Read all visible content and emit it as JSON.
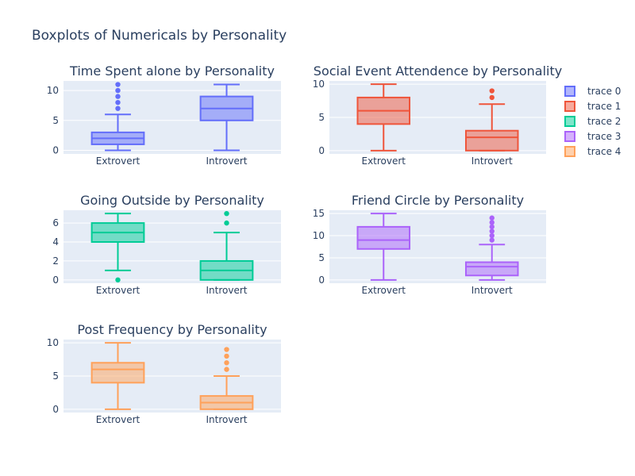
{
  "chart_data": {
    "type": "box",
    "title": "Boxplots of Numericals by Personality",
    "categories": [
      "Extrovert",
      "Introvert"
    ],
    "legend": {
      "placement": "right",
      "entries": [
        "trace 0",
        "trace 1",
        "trace 2",
        "trace 3",
        "trace 4"
      ]
    },
    "series": [
      {
        "name": "trace 0",
        "subplot_title": "Time Spent alone by Personality",
        "color": "#636efa",
        "ylim": [
          -0.6,
          11.6
        ],
        "yticks": [
          0,
          5,
          10
        ],
        "boxes": [
          {
            "category": "Extrovert",
            "min": 0,
            "q1": 1,
            "median": 2,
            "q3": 3,
            "max": 6,
            "outliers": [
              7,
              8,
              9,
              10,
              11
            ]
          },
          {
            "category": "Introvert",
            "min": 0,
            "q1": 5,
            "median": 7,
            "q3": 9,
            "max": 11,
            "outliers": []
          }
        ]
      },
      {
        "name": "trace 1",
        "subplot_title": "Social Event Attendence by Personality",
        "color": "#EF553B",
        "ylim": [
          -0.5,
          10.5
        ],
        "yticks": [
          0,
          5,
          10
        ],
        "boxes": [
          {
            "category": "Extrovert",
            "min": 0,
            "q1": 4,
            "median": 6,
            "q3": 8,
            "max": 10,
            "outliers": []
          },
          {
            "category": "Introvert",
            "min": 0,
            "q1": 0,
            "median": 2,
            "q3": 3,
            "max": 7,
            "outliers": [
              8,
              9
            ]
          }
        ]
      },
      {
        "name": "trace 2",
        "subplot_title": "Going Outside by Personality",
        "color": "#00cc96",
        "ylim": [
          -0.35,
          7.35
        ],
        "yticks": [
          0,
          2,
          4,
          6
        ],
        "boxes": [
          {
            "category": "Extrovert",
            "min": 1,
            "q1": 4,
            "median": 5,
            "q3": 6,
            "max": 7,
            "outliers": [
              0
            ]
          },
          {
            "category": "Introvert",
            "min": 0,
            "q1": 0,
            "median": 1,
            "q3": 2,
            "max": 5,
            "outliers": [
              6,
              7
            ]
          }
        ]
      },
      {
        "name": "trace 3",
        "subplot_title": "Friend Circle by Personality",
        "color": "#ab63fa",
        "ylim": [
          -0.75,
          15.75
        ],
        "yticks": [
          0,
          5,
          10,
          15
        ],
        "boxes": [
          {
            "category": "Extrovert",
            "min": 0,
            "q1": 7,
            "median": 9,
            "q3": 12,
            "max": 15,
            "outliers": []
          },
          {
            "category": "Introvert",
            "min": 0,
            "q1": 1,
            "median": 3,
            "q3": 4,
            "max": 8,
            "outliers": [
              9,
              10,
              11,
              12,
              13,
              14
            ]
          }
        ]
      },
      {
        "name": "trace 4",
        "subplot_title": "Post Frequency by Personality",
        "color": "#FFA15A",
        "ylim": [
          -0.5,
          10.5
        ],
        "yticks": [
          0,
          5,
          10
        ],
        "boxes": [
          {
            "category": "Extrovert",
            "min": 0,
            "q1": 4,
            "median": 6,
            "q3": 7,
            "max": 10,
            "outliers": []
          },
          {
            "category": "Introvert",
            "min": 0,
            "q1": 0,
            "median": 1,
            "q3": 2,
            "max": 5,
            "outliers": [
              6,
              7,
              8,
              9
            ]
          }
        ]
      }
    ]
  }
}
